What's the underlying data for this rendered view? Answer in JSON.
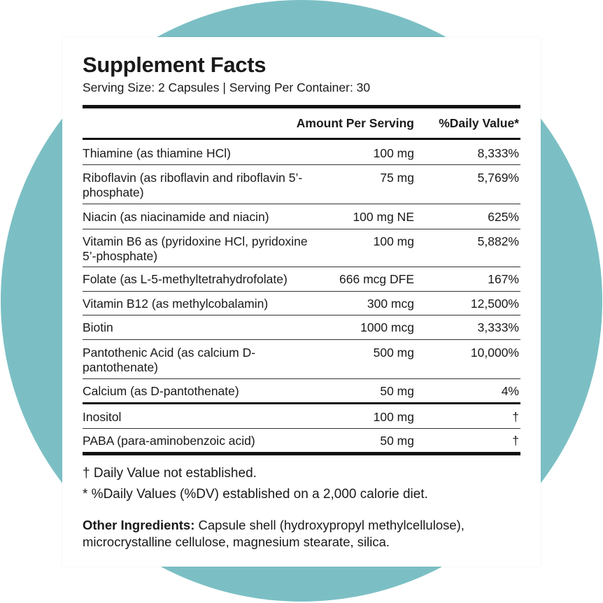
{
  "panel": {
    "title": "Supplement Facts",
    "subtitle": "Serving Size: 2 Capsules | Serving Per Container: 30"
  },
  "table": {
    "headers": {
      "amount": "Amount Per Serving",
      "dv": "%Daily Value*"
    },
    "rows": [
      {
        "name": "Thiamine (as thiamine HCl)",
        "amount": "100 mg",
        "dv": "8,333%"
      },
      {
        "name": "Riboflavin (as riboflavin and riboflavin 5’-phosphate)",
        "amount": "75 mg",
        "dv": "5,769%"
      },
      {
        "name": "Niacin (as niacinamide and niacin)",
        "amount": "100 mg NE",
        "dv": "625%"
      },
      {
        "name": "Vitamin B6 as (pyridoxine HCl, pyridoxine 5’-phosphate)",
        "amount": "100 mg",
        "dv": "5,882%"
      },
      {
        "name": "Folate (as L-5-methyltetrahydrofolate)",
        "amount": "666 mcg DFE",
        "dv": "167%"
      },
      {
        "name": "Vitamin B12 (as methylcobalamin)",
        "amount": "300 mcg",
        "dv": "12,500%"
      },
      {
        "name": "Biotin",
        "amount": "1000 mcg",
        "dv": "3,333%"
      },
      {
        "name": "Pantothenic Acid (as calcium D-pantothenate)",
        "amount": "500 mg",
        "dv": "10,000%"
      },
      {
        "name": "Calcium (as D-pantothenate)",
        "amount": "50 mg",
        "dv": "4%"
      },
      {
        "name": "Inositol",
        "amount": "100 mg",
        "dv": "†"
      },
      {
        "name": "PABA (para-aminobenzoic acid)",
        "amount": "50 mg",
        "dv": "†"
      }
    ]
  },
  "footnotes": {
    "dagger": "† Daily Value not established.",
    "asterisk": "* %Daily Values (%DV) established on a 2,000 calorie diet."
  },
  "other_ingredients": {
    "label": "Other Ingredients:",
    "text": " Capsule shell (hydroxypropyl methylcellulose), microcrystalline cellulose, magnesium stearate, silica."
  }
}
